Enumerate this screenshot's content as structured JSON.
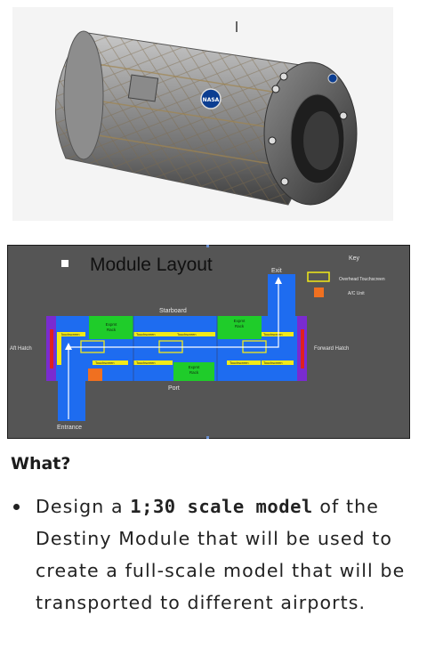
{
  "photo": {
    "badge_text": "NASA"
  },
  "layout": {
    "title": "Module Layout",
    "key_title": "Key",
    "key_overhead": "Overhead Touchscreen",
    "key_ac": "A/C Unit",
    "starboard": "Starboard",
    "port": "Port",
    "aft_hatch": "Aft Hatch",
    "forward_hatch": "Forward Hatch",
    "exit": "Exit",
    "entrance": "Entrance",
    "expmt_rack_line1": "Expmt",
    "expmt_rack_line2": "Rack",
    "touchscreen": "Touchscreen",
    "colors": {
      "background": "#555555",
      "module": "#1e6cf0",
      "rack": "#1fcc2a",
      "touchscreen": "#f2ea18",
      "hatch": "#7a2bd0",
      "hatch_red": "#e02020",
      "ac_unit": "#f07020"
    }
  },
  "section": {
    "heading": "What?",
    "bullet_pre": "Design a ",
    "bullet_bold": "1;30 scale model",
    "bullet_post": " of the Destiny Module that will be used to create a full-scale model that will be transported to different airports."
  }
}
